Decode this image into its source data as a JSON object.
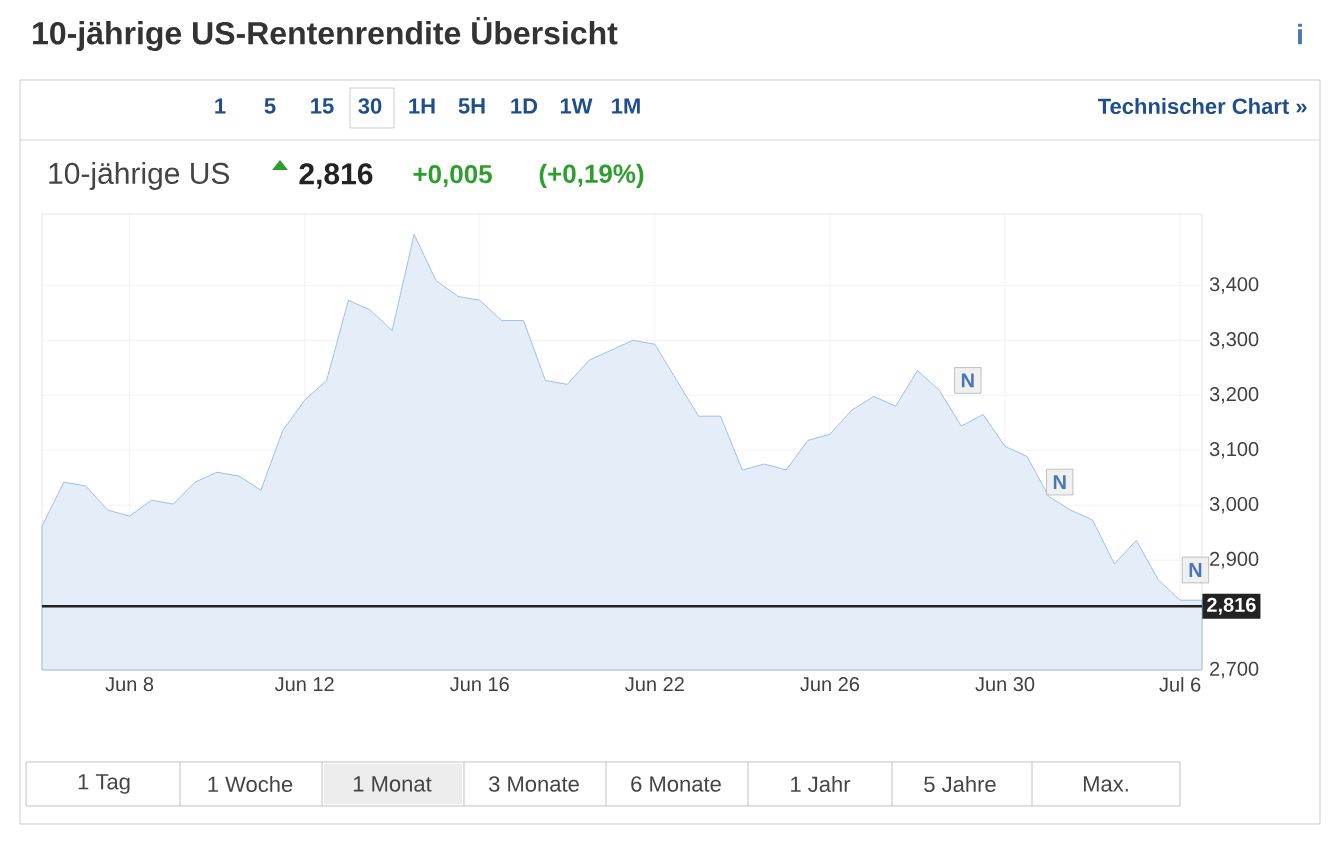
{
  "chart_data": {
    "type": "area",
    "title": "10-jährige US-Rentenrendite Übersicht",
    "subtitle": "10-jährige US",
    "categories": [
      null,
      null,
      null,
      null,
      "Jun 8",
      null,
      null,
      null,
      null,
      null,
      null,
      null,
      "Jun 12",
      null,
      null,
      null,
      null,
      null,
      null,
      null,
      "Jun 16",
      null,
      null,
      null,
      null,
      null,
      null,
      null,
      "Jun 22",
      null,
      null,
      null,
      null,
      null,
      null,
      null,
      "Jun 26",
      null,
      null,
      null,
      null,
      null,
      null,
      null,
      "Jun 30",
      null,
      null,
      null,
      null,
      null,
      null,
      null,
      "Jul 6",
      null
    ],
    "series": [
      {
        "color": "#8ab2de",
        "values": [
          2.962,
          3.042,
          3.035,
          2.991,
          2.98,
          3.009,
          3.002,
          3.042,
          3.06,
          3.053,
          3.027,
          3.136,
          3.191,
          3.227,
          3.373,
          3.355,
          3.318,
          3.493,
          3.409,
          3.38,
          3.373,
          3.336,
          3.336,
          3.227,
          3.22,
          3.264,
          3.282,
          3.3,
          3.293,
          3.227,
          3.162,
          3.162,
          3.064,
          3.075,
          3.064,
          3.118,
          3.129,
          3.173,
          3.198,
          3.18,
          3.245,
          3.209,
          3.144,
          3.165,
          3.107,
          3.089,
          3.016,
          2.991,
          2.973,
          2.893,
          2.936,
          2.864,
          2.827,
          2.827
        ]
      }
    ],
    "ylim": [
      2.7,
      3.53
    ],
    "yticks": [
      {
        "value": 2.7,
        "label": "2,700"
      },
      {
        "value": 2.8,
        "label": null
      },
      {
        "value": 2.9,
        "label": "2,900"
      },
      {
        "value": 3.0,
        "label": "3,000"
      },
      {
        "value": 3.1,
        "label": "3,100"
      },
      {
        "value": 3.2,
        "label": "3,200"
      },
      {
        "value": 3.3,
        "label": "3,300"
      },
      {
        "value": 3.4,
        "label": "3,400"
      }
    ],
    "grid": true,
    "ref_lines": [
      {
        "axis": "y",
        "value": 2.816,
        "label": "2,816",
        "color": "#222222"
      }
    ],
    "annotations": [
      "2,816",
      "+0,005",
      "(+0,19%)",
      "1",
      "5",
      "15",
      "30",
      "1H",
      "5H",
      "1D",
      "1W",
      "1M",
      "Technischer Chart »",
      "1 Tag",
      "1 Woche",
      "1 Monat",
      "3 Monate",
      "6 Monate",
      "1 Jahr",
      "5 Jahre",
      "Max.",
      "i",
      {
        "text": "N",
        "y": 3.227
      },
      {
        "text": "N",
        "y": 3.042
      },
      {
        "text": "N",
        "y": 2.882
      }
    ]
  }
}
